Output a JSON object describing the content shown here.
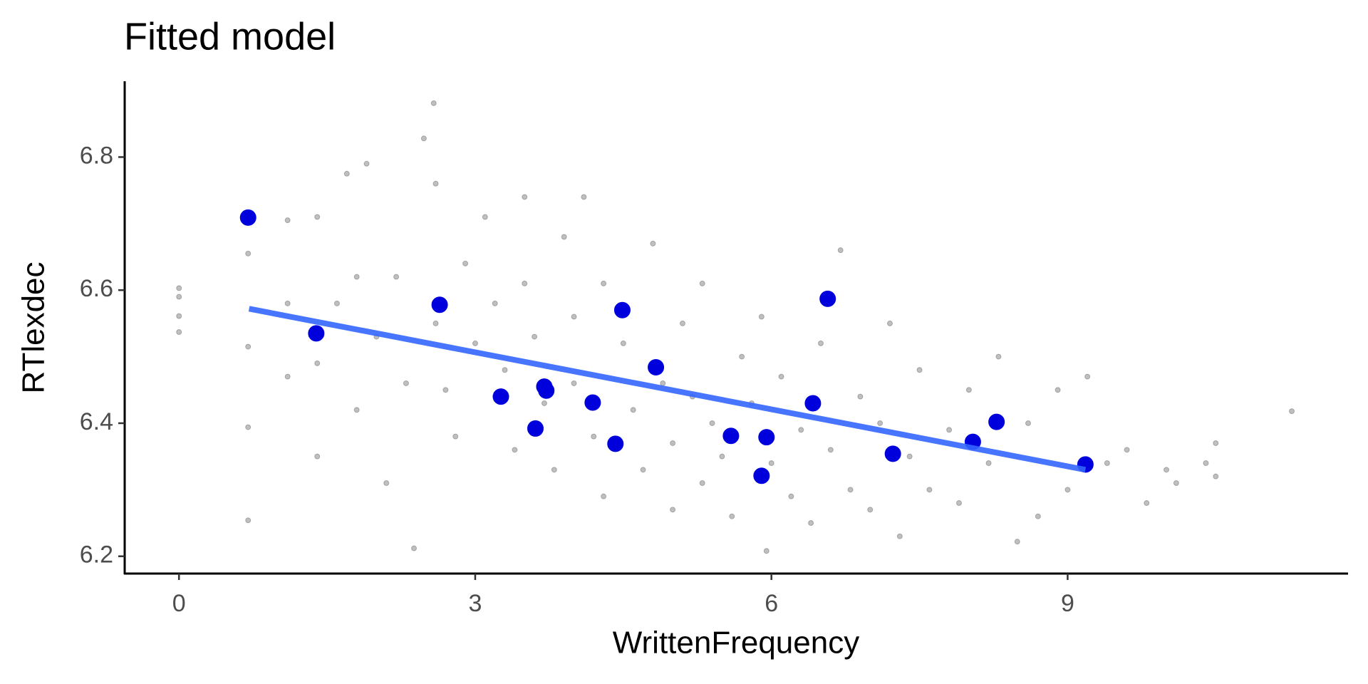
{
  "chart_data": {
    "type": "scatter",
    "title": "Fitted model",
    "x_label": "WrittenFrequency",
    "y_label": "RTlexdec",
    "xlim": [
      -0.55,
      11.84
    ],
    "ylim": [
      6.174,
      6.914
    ],
    "xticks": [
      0,
      3,
      6,
      9
    ],
    "yticks": [
      6.2,
      6.4,
      6.6,
      6.8
    ],
    "grid": false,
    "series": [
      {
        "color": "#000000",
        "opacity": 0.25,
        "size": 3.5,
        "x": [
          0,
          0,
          0,
          0,
          0.7,
          0.7,
          0.7,
          0.7,
          1.1,
          1.1,
          1.1,
          1.4,
          1.4,
          1.4,
          1.6,
          1.7,
          1.8,
          1.8,
          1.9,
          2.0,
          2.1,
          2.2,
          2.3,
          2.38,
          2.48,
          2.58,
          2.6,
          2.6,
          2.7,
          2.8,
          2.9,
          3.0,
          3.1,
          3.2,
          3.3,
          3.4,
          3.5,
          3.5,
          3.6,
          3.7,
          3.8,
          3.9,
          4.0,
          4.0,
          4.1,
          4.2,
          4.3,
          4.3,
          4.5,
          4.6,
          4.7,
          4.8,
          4.9,
          5.0,
          5.0,
          5.1,
          5.2,
          5.3,
          5.3,
          5.4,
          5.5,
          5.6,
          5.7,
          5.8,
          5.9,
          5.95,
          6.0,
          6.1,
          6.2,
          6.3,
          6.4,
          6.5,
          6.6,
          6.7,
          6.8,
          6.9,
          7.0,
          7.1,
          7.2,
          7.3,
          7.4,
          7.5,
          7.6,
          7.8,
          7.9,
          8.0,
          8.2,
          8.3,
          8.49,
          8.6,
          8.7,
          8.9,
          9.0,
          9.2,
          9.4,
          9.6,
          9.8,
          10.0,
          10.1,
          10.4,
          10.5,
          10.5,
          11.27
        ],
        "values": [
          6.603,
          6.59,
          6.561,
          6.537,
          6.254,
          6.394,
          6.515,
          6.655,
          6.705,
          6.58,
          6.47,
          6.35,
          6.49,
          6.71,
          6.58,
          6.775,
          6.42,
          6.62,
          6.79,
          6.53,
          6.31,
          6.62,
          6.46,
          6.212,
          6.828,
          6.881,
          6.76,
          6.55,
          6.45,
          6.38,
          6.64,
          6.52,
          6.71,
          6.58,
          6.48,
          6.36,
          6.74,
          6.61,
          6.53,
          6.43,
          6.33,
          6.68,
          6.56,
          6.46,
          6.74,
          6.38,
          6.61,
          6.29,
          6.52,
          6.42,
          6.33,
          6.67,
          6.46,
          6.37,
          6.27,
          6.55,
          6.44,
          6.31,
          6.61,
          6.4,
          6.35,
          6.26,
          6.5,
          6.43,
          6.56,
          6.208,
          6.34,
          6.47,
          6.29,
          6.39,
          6.25,
          6.52,
          6.36,
          6.66,
          6.3,
          6.44,
          6.27,
          6.4,
          6.55,
          6.23,
          6.35,
          6.48,
          6.3,
          6.39,
          6.28,
          6.45,
          6.34,
          6.5,
          6.222,
          6.4,
          6.26,
          6.45,
          6.3,
          6.47,
          6.34,
          6.36,
          6.28,
          6.33,
          6.31,
          6.34,
          6.37,
          6.32,
          6.418
        ]
      },
      {
        "color": "#0000dd",
        "opacity": 1,
        "size": 11,
        "x": [
          0.7,
          1.39,
          2.64,
          3.26,
          3.61,
          3.7,
          3.72,
          4.19,
          4.42,
          4.49,
          4.83,
          5.59,
          5.9,
          5.95,
          6.42,
          6.57,
          7.23,
          8.04,
          8.28,
          9.18
        ],
        "values": [
          6.709,
          6.535,
          6.578,
          6.44,
          6.392,
          6.455,
          6.449,
          6.431,
          6.369,
          6.57,
          6.484,
          6.381,
          6.321,
          6.379,
          6.43,
          6.587,
          6.354,
          6.372,
          6.402,
          6.338
        ]
      },
      {
        "color": "#3366ff",
        "opacity": 0.9,
        "size": 8,
        "style": "line",
        "x": [
          0.71,
          9.18
        ],
        "values": [
          6.572,
          6.33
        ]
      }
    ]
  }
}
